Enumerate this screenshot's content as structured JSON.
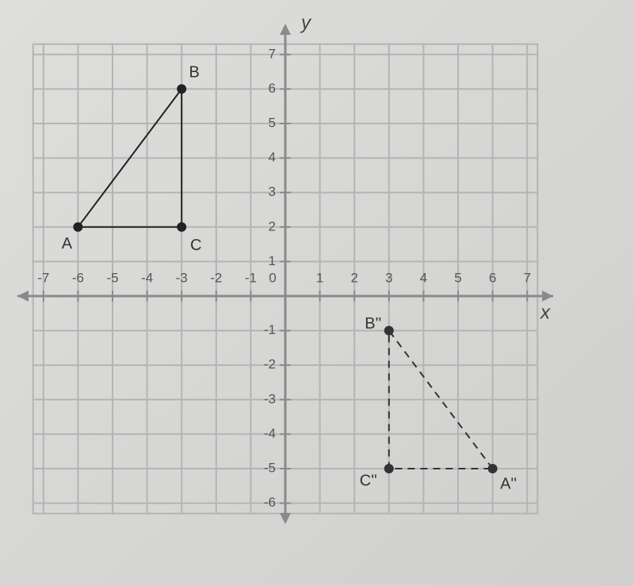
{
  "chart_data": {
    "type": "polygon",
    "x_label": "x",
    "y_label": "y",
    "xlim": [
      -7.3,
      7.3
    ],
    "ylim": [
      -6.3,
      7.3
    ],
    "xticks": [
      -7,
      -6,
      -5,
      -4,
      -3,
      -2,
      -1,
      0,
      1,
      2,
      3,
      4,
      5,
      6,
      7
    ],
    "yticks": [
      -6,
      -5,
      -4,
      -3,
      -2,
      -1,
      1,
      2,
      3,
      4,
      5,
      6,
      7
    ],
    "grid": true,
    "shapes": [
      {
        "line_style": "solid",
        "color": "#222222",
        "points": [
          {
            "label": "A",
            "x": -6,
            "y": 2
          },
          {
            "label": "B",
            "x": -3,
            "y": 6
          },
          {
            "label": "C",
            "x": -3,
            "y": 2
          }
        ]
      },
      {
        "line_style": "dashed",
        "color": "#333333",
        "points": [
          {
            "label": "A''",
            "x": 6,
            "y": -5
          },
          {
            "label": "B''",
            "x": 3,
            "y": -1
          },
          {
            "label": "C''",
            "x": 3,
            "y": -5
          }
        ]
      }
    ]
  }
}
